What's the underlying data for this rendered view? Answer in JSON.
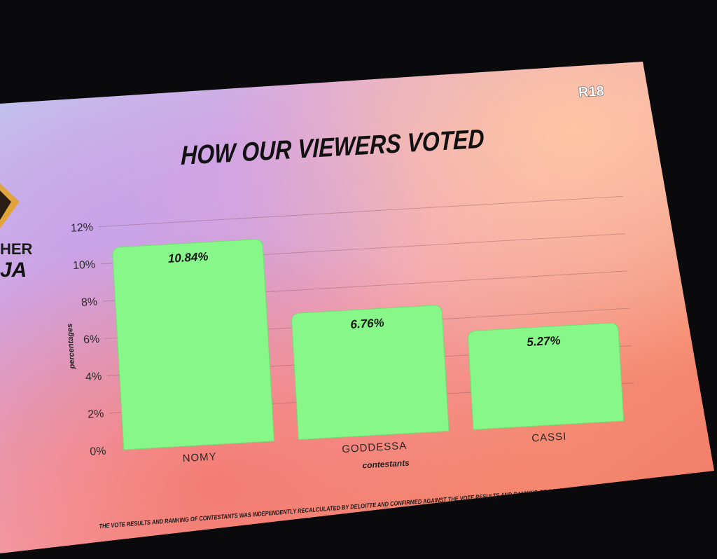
{
  "screen": {
    "rating_badge": "R18",
    "title": "HOW OUR VIEWERS VOTED",
    "logo_fragment_top": "HER",
    "logo_fragment_bottom": "JA",
    "footnote": "THE VOTE RESULTS AND RANKING OF CONTESTANTS WAS INDEPENDENTLY RECALCULATED BY DELOITTE AND CONFIRMED AGAINST THE VOTE RESULTS AND RANKING OF CONTESTANTS AS DETERMINED BY MULTICHOICE.",
    "colors": {
      "bar": "#88f78a",
      "bar_stroke": "#6fe070",
      "text": "#222222",
      "bg_pink": "#f2a3b4",
      "bg_coral": "#f47f6e",
      "bg_lilac": "#d9a6e0",
      "bg_blue": "#a9d9f0"
    }
  },
  "chart_data": {
    "type": "bar",
    "categories": [
      "NOMY",
      "GODDESSA",
      "CASSI"
    ],
    "values": [
      10.84,
      6.76,
      5.27
    ],
    "data_labels": [
      "10.84%",
      "6.76%",
      "5.27%"
    ],
    "title": "HOW OUR VIEWERS VOTED",
    "xlabel": "contestants",
    "ylabel": "percentages",
    "ylim": [
      0,
      12
    ],
    "yticks": [
      0,
      2,
      4,
      6,
      8,
      10,
      12
    ],
    "ytick_labels": [
      "0%",
      "2%",
      "4%",
      "6%",
      "8%",
      "10%",
      "12%"
    ],
    "grid": true
  }
}
